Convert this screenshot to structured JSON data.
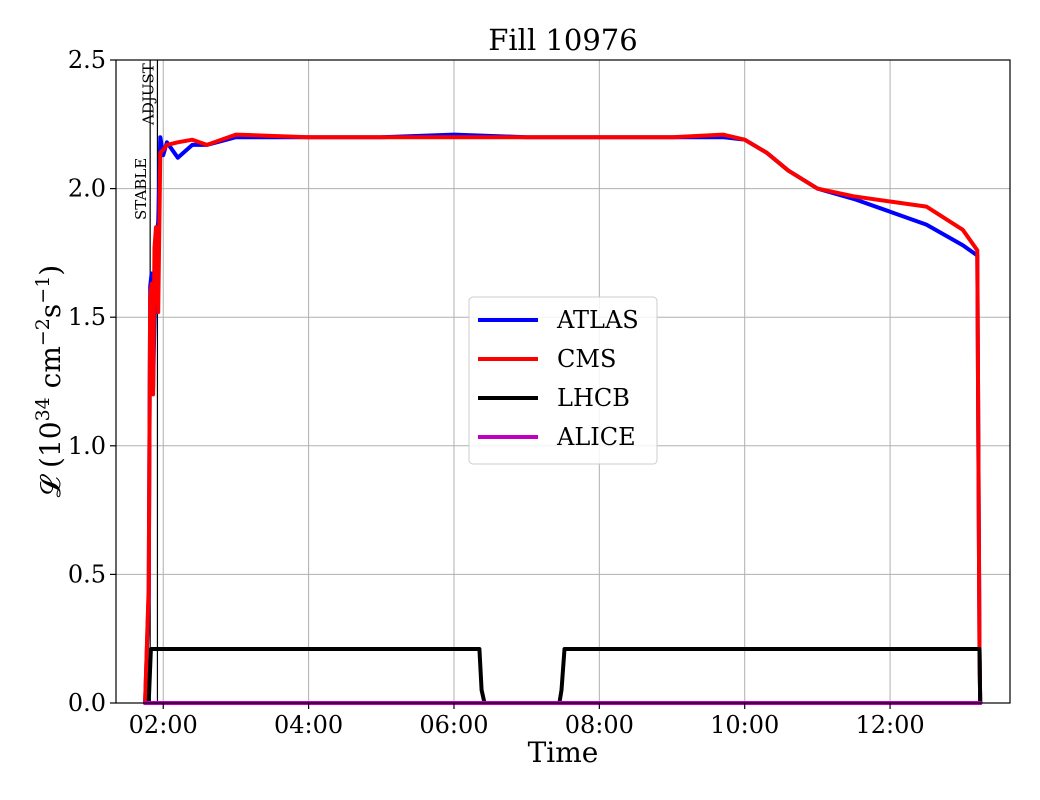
{
  "chart_data": {
    "type": "line",
    "title": "Fill 10976",
    "xlabel": "Time",
    "ylabel_main": "𝓛 (10",
    "ylabel_exp1": "34",
    "ylabel_mid": " cm",
    "ylabel_exp2": "−2",
    "ylabel_mid2": "s",
    "ylabel_exp3": "−1",
    "ylabel_end": ")",
    "x_unit": "hours since 00:00",
    "xlim": [
      1.35,
      13.65
    ],
    "ylim": [
      0.0,
      2.5
    ],
    "x_ticks": [
      {
        "value": 2,
        "label": "02:00"
      },
      {
        "value": 4,
        "label": "04:00"
      },
      {
        "value": 6,
        "label": "06:00"
      },
      {
        "value": 8,
        "label": "08:00"
      },
      {
        "value": 10,
        "label": "10:00"
      },
      {
        "value": 12,
        "label": "12:00"
      }
    ],
    "y_ticks": [
      {
        "value": 0.0,
        "label": "0.0"
      },
      {
        "value": 0.5,
        "label": "0.5"
      },
      {
        "value": 1.0,
        "label": "1.0"
      },
      {
        "value": 1.5,
        "label": "1.5"
      },
      {
        "value": 2.0,
        "label": "2.0"
      },
      {
        "value": 2.5,
        "label": "2.5"
      }
    ],
    "grid": true,
    "legend_position": "center",
    "markers": [
      {
        "label": "STABLE",
        "x": 1.82
      },
      {
        "label": "ADJUST",
        "x": 1.92
      }
    ],
    "series": [
      {
        "name": "ATLAS",
        "color": "#0000ff",
        "x": [
          1.75,
          1.8,
          1.82,
          1.84,
          1.86,
          1.9,
          1.93,
          1.96,
          2.0,
          2.05,
          2.2,
          2.4,
          2.6,
          3.0,
          4.0,
          5.0,
          6.0,
          7.0,
          8.0,
          9.0,
          9.7,
          10.0,
          10.3,
          10.6,
          11.0,
          11.5,
          12.0,
          12.5,
          13.0,
          13.2,
          13.23,
          13.24
        ],
        "y": [
          0.0,
          0.42,
          1.62,
          1.67,
          1.22,
          1.8,
          1.87,
          2.2,
          2.13,
          2.18,
          2.12,
          2.17,
          2.17,
          2.2,
          2.2,
          2.2,
          2.21,
          2.2,
          2.2,
          2.2,
          2.2,
          2.19,
          2.14,
          2.07,
          2.0,
          1.96,
          1.91,
          1.86,
          1.78,
          1.74,
          0.21,
          0.0
        ]
      },
      {
        "name": "CMS",
        "color": "#ff0000",
        "x": [
          1.75,
          1.8,
          1.82,
          1.84,
          1.86,
          1.88,
          1.9,
          1.93,
          1.96,
          2.0,
          2.05,
          2.2,
          2.4,
          2.6,
          3.0,
          4.0,
          5.0,
          6.0,
          7.0,
          8.0,
          9.0,
          9.7,
          10.0,
          10.3,
          10.6,
          11.0,
          11.5,
          12.0,
          12.5,
          13.0,
          13.2,
          13.23,
          13.24
        ],
        "y": [
          0.0,
          0.45,
          1.58,
          1.63,
          1.2,
          1.77,
          1.85,
          1.52,
          2.14,
          2.15,
          2.17,
          2.18,
          2.19,
          2.17,
          2.21,
          2.2,
          2.2,
          2.2,
          2.2,
          2.2,
          2.2,
          2.21,
          2.19,
          2.14,
          2.07,
          2.0,
          1.97,
          1.95,
          1.93,
          1.84,
          1.76,
          0.21,
          0.0
        ]
      },
      {
        "name": "LHCB",
        "color": "#000000",
        "x": [
          1.75,
          1.8,
          1.83,
          1.9,
          2.0,
          3.0,
          4.0,
          5.0,
          6.0,
          6.35,
          6.38,
          6.42,
          7.45,
          7.48,
          7.52,
          8.0,
          9.0,
          10.0,
          11.0,
          12.0,
          13.0,
          13.2,
          13.23,
          13.24
        ],
        "y": [
          0.0,
          0.0,
          0.21,
          0.21,
          0.21,
          0.21,
          0.21,
          0.21,
          0.21,
          0.21,
          0.05,
          0.0,
          0.0,
          0.05,
          0.21,
          0.21,
          0.21,
          0.21,
          0.21,
          0.21,
          0.21,
          0.21,
          0.21,
          0.0
        ]
      },
      {
        "name": "ALICE",
        "color": "#bf00bf",
        "x": [
          1.75,
          13.24
        ],
        "y": [
          0.0,
          0.0
        ]
      }
    ]
  }
}
